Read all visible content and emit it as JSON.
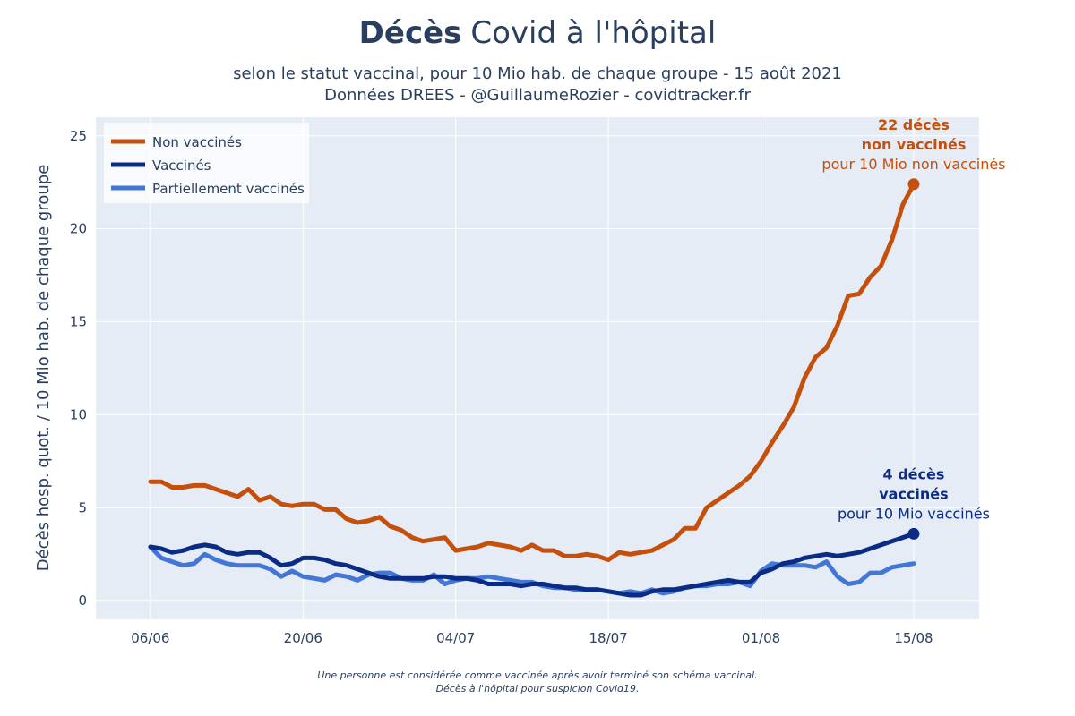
{
  "chart_data": {
    "type": "line",
    "title": {
      "bold": "Décès",
      "rest": "Covid à l'hôpital"
    },
    "subtitle_lines": [
      "selon le statut vaccinal, pour 10 Mio hab. de chaque groupe - 15 août 2021",
      "Données DREES - @GuillaumeRozier - covidtracker.fr"
    ],
    "ylabel": "Décès hosp. quot. / 10 Mio hab. de chaque groupe",
    "xlabel": "",
    "ylim": [
      -1,
      26
    ],
    "xlim": [
      -5,
      76
    ],
    "yticks": [
      0,
      5,
      10,
      15,
      20,
      25
    ],
    "xticks": [
      {
        "x": 0,
        "label": "06/06"
      },
      {
        "x": 14,
        "label": "20/06"
      },
      {
        "x": 28,
        "label": "04/07"
      },
      {
        "x": 42,
        "label": "18/07"
      },
      {
        "x": 56,
        "label": "01/08"
      },
      {
        "x": 70,
        "label": "15/08"
      }
    ],
    "x_unit": "days since 06/06/2021",
    "series": [
      {
        "name": "Non vaccinés",
        "color": "#c4500c",
        "values": [
          6.4,
          6.4,
          6.1,
          6.1,
          6.2,
          6.2,
          6.0,
          5.8,
          5.6,
          6.0,
          5.4,
          5.6,
          5.2,
          5.1,
          5.2,
          5.2,
          4.9,
          4.9,
          4.4,
          4.2,
          4.3,
          4.5,
          4.0,
          3.8,
          3.4,
          3.2,
          3.3,
          3.4,
          2.7,
          2.8,
          2.9,
          3.1,
          3.0,
          2.9,
          2.7,
          3.0,
          2.7,
          2.7,
          2.4,
          2.4,
          2.5,
          2.4,
          2.2,
          2.6,
          2.5,
          2.6,
          2.7,
          3.0,
          3.3,
          3.9,
          3.9,
          5.0,
          5.4,
          5.8,
          6.2,
          6.7,
          7.5,
          8.5,
          9.4,
          10.4,
          12.0,
          13.1,
          13.6,
          14.8,
          16.4,
          16.5,
          17.4,
          18.0,
          19.4,
          21.3,
          22.4
        ]
      },
      {
        "name": "Vaccinés",
        "color": "#0a2c84",
        "values": [
          2.9,
          2.8,
          2.6,
          2.7,
          2.9,
          3.0,
          2.9,
          2.6,
          2.5,
          2.6,
          2.6,
          2.3,
          1.9,
          2.0,
          2.3,
          2.3,
          2.2,
          2.0,
          1.9,
          1.7,
          1.5,
          1.3,
          1.2,
          1.2,
          1.2,
          1.2,
          1.3,
          1.3,
          1.2,
          1.2,
          1.1,
          0.9,
          0.9,
          0.9,
          0.8,
          0.9,
          0.9,
          0.8,
          0.7,
          0.7,
          0.6,
          0.6,
          0.5,
          0.4,
          0.3,
          0.3,
          0.5,
          0.6,
          0.6,
          0.7,
          0.8,
          0.9,
          1.0,
          1.1,
          1.0,
          1.0,
          1.5,
          1.7,
          2.0,
          2.1,
          2.3,
          2.4,
          2.5,
          2.4,
          2.5,
          2.6,
          2.8,
          3.0,
          3.2,
          3.4,
          3.6
        ]
      },
      {
        "name": "Partiellement vaccinés",
        "color": "#4377d6",
        "values": [
          2.9,
          2.3,
          2.1,
          1.9,
          2.0,
          2.5,
          2.2,
          2.0,
          1.9,
          1.9,
          1.9,
          1.7,
          1.3,
          1.6,
          1.3,
          1.2,
          1.1,
          1.4,
          1.3,
          1.1,
          1.4,
          1.5,
          1.5,
          1.2,
          1.1,
          1.1,
          1.4,
          0.9,
          1.1,
          1.2,
          1.2,
          1.3,
          1.2,
          1.1,
          1.0,
          1.0,
          0.8,
          0.7,
          0.7,
          0.6,
          0.6,
          0.6,
          0.5,
          0.4,
          0.5,
          0.4,
          0.6,
          0.4,
          0.5,
          0.7,
          0.8,
          0.8,
          0.9,
          0.9,
          1.0,
          0.8,
          1.6,
          2.0,
          1.9,
          1.9,
          1.9,
          1.8,
          2.1,
          1.3,
          0.9,
          1.0,
          1.5,
          1.5,
          1.8,
          1.9,
          2.0
        ]
      }
    ],
    "annotations": [
      {
        "series": 0,
        "bold1": "22 décès",
        "bold2": "non vaccinés",
        "normal": "pour 10 Mio non vaccinés",
        "color": "#c4500c"
      },
      {
        "series": 1,
        "bold1": "4 décès",
        "bold2": "vaccinés",
        "normal": "pour 10 Mio vaccinés",
        "color": "#0a2c84"
      }
    ],
    "legend_position": "top-left",
    "footnote_lines": [
      "Une personne est considérée comme vaccinée après avoir terminé son schéma vaccinal.",
      "Décès à l'hôpital pour suspicion Covid19."
    ],
    "grid": true,
    "plot_bg": "#e5ecf6"
  }
}
